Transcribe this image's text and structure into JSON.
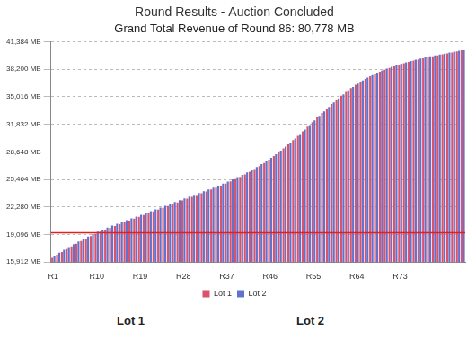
{
  "chart_data": {
    "type": "bar",
    "title": "Round Results - Auction Concluded",
    "subtitle": "Grand Total Revenue of Round 86: 80,778 MB",
    "categories": [
      "R1",
      null,
      null,
      null,
      null,
      null,
      null,
      null,
      null,
      "R10",
      null,
      null,
      null,
      null,
      null,
      null,
      null,
      null,
      "R19",
      null,
      null,
      null,
      null,
      null,
      null,
      null,
      null,
      "R28",
      null,
      null,
      null,
      null,
      null,
      null,
      null,
      null,
      "R37",
      null,
      null,
      null,
      null,
      null,
      null,
      null,
      null,
      "R46",
      null,
      null,
      null,
      null,
      null,
      null,
      null,
      null,
      "R55",
      null,
      null,
      null,
      null,
      null,
      null,
      null,
      null,
      "R64",
      null,
      null,
      null,
      null,
      null,
      null,
      null,
      null,
      "R73",
      null,
      null,
      null,
      null,
      null,
      null,
      null,
      null,
      null,
      null,
      null,
      null,
      null
    ],
    "series": [
      {
        "name": "Lot 1",
        "color": "#d9536b",
        "values": [
          16400,
          16750,
          17080,
          17400,
          17720,
          18030,
          18330,
          18620,
          18900,
          19180,
          19420,
          19650,
          19870,
          20080,
          20290,
          20500,
          20710,
          20920,
          21130,
          21340,
          21550,
          21760,
          21970,
          22180,
          22390,
          22600,
          22810,
          23020,
          23230,
          23440,
          23650,
          23860,
          24070,
          24290,
          24510,
          24740,
          24980,
          25230,
          25490,
          25760,
          26040,
          26340,
          26660,
          27000,
          27360,
          27740,
          28150,
          28580,
          29030,
          29500,
          29990,
          30500,
          31020,
          31550,
          32080,
          32610,
          33140,
          33660,
          34170,
          34660,
          35130,
          35580,
          36000,
          36390,
          36750,
          37080,
          37380,
          37650,
          37900,
          38130,
          38340,
          38530,
          38710,
          38880,
          39040,
          39190,
          39330,
          39460,
          39580,
          39690,
          39800,
          39910,
          40020,
          40130,
          40260,
          40384
        ]
      },
      {
        "name": "Lot 2",
        "color": "#5f72d0",
        "values": [
          16650,
          17000,
          17330,
          17650,
          17970,
          18280,
          18580,
          18870,
          19150,
          19430,
          19670,
          19900,
          20120,
          20330,
          20540,
          20750,
          20960,
          21170,
          21380,
          21590,
          21790,
          22000,
          22210,
          22420,
          22630,
          22840,
          23050,
          23260,
          23470,
          23680,
          23880,
          24090,
          24300,
          24520,
          24740,
          24970,
          25210,
          25460,
          25720,
          25990,
          26260,
          26560,
          26880,
          27220,
          27580,
          27960,
          28360,
          28790,
          29240,
          29710,
          30190,
          30700,
          31220,
          31740,
          32270,
          32800,
          33320,
          33840,
          34340,
          34830,
          35290,
          35740,
          36150,
          36540,
          36890,
          37220,
          37520,
          37790,
          38030,
          38260,
          38460,
          38650,
          38830,
          38990,
          39150,
          39300,
          39440,
          39560,
          39680,
          39790,
          39900,
          40010,
          40120,
          40230,
          40340,
          40394
        ]
      }
    ],
    "ylim": [
      15912,
      41384
    ],
    "yticks": [
      {
        "value": 15912,
        "label": "15,912 MB"
      },
      {
        "value": 19096,
        "label": "19,096 MB"
      },
      {
        "value": 22280,
        "label": "22,280 MB"
      },
      {
        "value": 25464,
        "label": "25,464 MB"
      },
      {
        "value": 28648,
        "label": "28,648 MB"
      },
      {
        "value": 31832,
        "label": "31,832 MB"
      },
      {
        "value": 35016,
        "label": "35,016 MB"
      },
      {
        "value": 38200,
        "label": "38,200 MB"
      },
      {
        "value": 41384,
        "label": "41,384 MB"
      }
    ],
    "reference_line": {
      "value": 19300,
      "color": "#e02020"
    },
    "grid": true,
    "legend": "bottom",
    "annotations": [
      "Lot 1",
      "Lot 2"
    ]
  }
}
